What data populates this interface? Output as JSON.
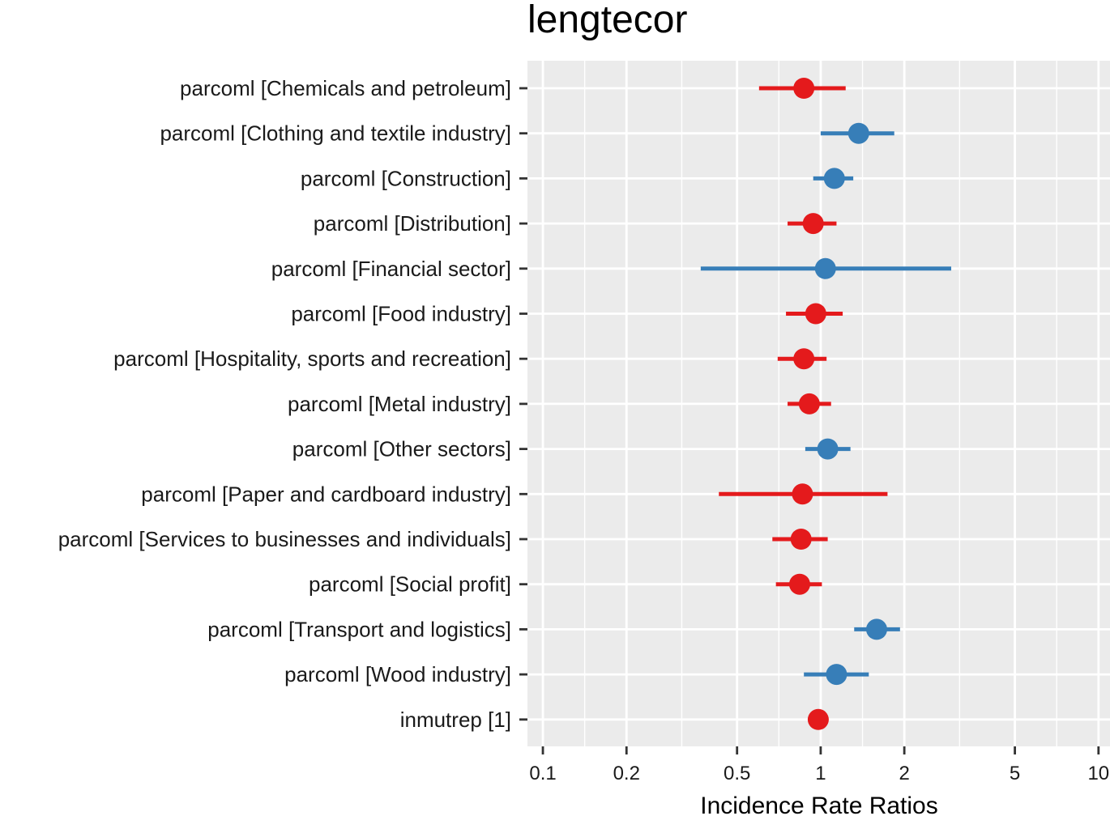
{
  "chart_data": {
    "type": "scatter",
    "subtype": "forest-plot",
    "title": "lengtecor",
    "xlabel": "Incidence Rate Ratios",
    "ylabel": "",
    "x_scale": "log",
    "xlim": [
      0.088,
      11.0
    ],
    "x_ticks": [
      0.1,
      0.2,
      0.5,
      1,
      2,
      5,
      10
    ],
    "x_tick_labels": [
      "0.1",
      "0.2",
      "0.5",
      "1",
      "2",
      "5",
      "10"
    ],
    "grid": true,
    "legend": "none",
    "colors": {
      "positive": "#377eb8",
      "negative": "#e41a1c",
      "panel_bg": "#ebebeb",
      "grid": "#ffffff"
    },
    "rows": [
      {
        "label": "parcoml [Chemicals and petroleum]",
        "estimate": 0.87,
        "ci_low": 0.6,
        "ci_high": 1.23,
        "direction": "negative"
      },
      {
        "label": "parcoml [Clothing and textile industry]",
        "estimate": 1.37,
        "ci_low": 1.0,
        "ci_high": 1.84,
        "direction": "positive"
      },
      {
        "label": "parcoml [Construction]",
        "estimate": 1.12,
        "ci_low": 0.94,
        "ci_high": 1.31,
        "direction": "positive"
      },
      {
        "label": "parcoml [Distribution]",
        "estimate": 0.94,
        "ci_low": 0.76,
        "ci_high": 1.14,
        "direction": "negative"
      },
      {
        "label": "parcoml [Financial sector]",
        "estimate": 1.04,
        "ci_low": 0.37,
        "ci_high": 2.95,
        "direction": "positive"
      },
      {
        "label": "parcoml [Food industry]",
        "estimate": 0.96,
        "ci_low": 0.75,
        "ci_high": 1.2,
        "direction": "negative"
      },
      {
        "label": "parcoml [Hospitality, sports and recreation]",
        "estimate": 0.87,
        "ci_low": 0.7,
        "ci_high": 1.05,
        "direction": "negative"
      },
      {
        "label": "parcoml [Metal industry]",
        "estimate": 0.91,
        "ci_low": 0.76,
        "ci_high": 1.09,
        "direction": "negative"
      },
      {
        "label": "parcoml [Other sectors]",
        "estimate": 1.06,
        "ci_low": 0.88,
        "ci_high": 1.28,
        "direction": "positive"
      },
      {
        "label": "parcoml [Paper and cardboard industry]",
        "estimate": 0.86,
        "ci_low": 0.43,
        "ci_high": 1.74,
        "direction": "negative"
      },
      {
        "label": "parcoml [Services to businesses and individuals]",
        "estimate": 0.85,
        "ci_low": 0.67,
        "ci_high": 1.06,
        "direction": "negative"
      },
      {
        "label": "parcoml [Social profit]",
        "estimate": 0.84,
        "ci_low": 0.69,
        "ci_high": 1.01,
        "direction": "negative"
      },
      {
        "label": "parcoml [Transport and logistics]",
        "estimate": 1.59,
        "ci_low": 1.32,
        "ci_high": 1.93,
        "direction": "positive"
      },
      {
        "label": "parcoml [Wood industry]",
        "estimate": 1.14,
        "ci_low": 0.87,
        "ci_high": 1.49,
        "direction": "positive"
      },
      {
        "label": "inmutrep [1]",
        "estimate": 0.98,
        "ci_low": 0.97,
        "ci_high": 0.99,
        "direction": "negative"
      }
    ]
  }
}
